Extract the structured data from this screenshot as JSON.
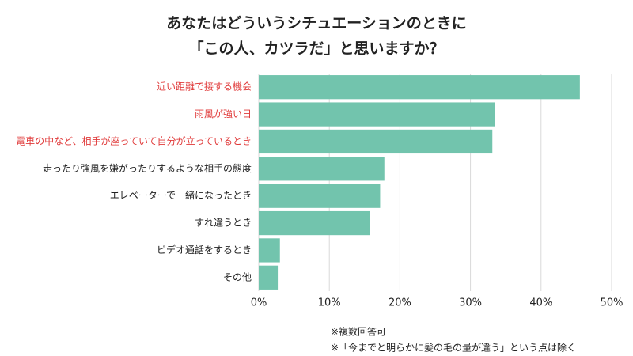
{
  "chart_data": {
    "type": "bar",
    "orientation": "horizontal",
    "title": [
      "あなたはどういうシチュエーションのときに",
      "「この人、カツラだ」と思いますか？"
    ],
    "categories": [
      "近い距離で接する機会",
      "雨風が強い日",
      "電車の中など、相手が座っていて自分が立っているとき",
      "走ったり強風を嫌がったりするような相手の態度",
      "エレベーターで一緒になったとき",
      "すれ違うとき",
      "ビデオ通話をするとき",
      "その他"
    ],
    "category_colors": [
      "#e03a3a",
      "#e03a3a",
      "#e03a3a",
      "#222222",
      "#222222",
      "#222222",
      "#222222",
      "#222222"
    ],
    "values": [
      45.5,
      33.5,
      33.1,
      17.8,
      17.2,
      15.7,
      3.0,
      2.7
    ],
    "color": "#72c4ad",
    "xlim": [
      0,
      50
    ],
    "xticks": [
      {
        "value": 0,
        "label": "0%"
      },
      {
        "value": 10,
        "label": "10%"
      },
      {
        "value": 20,
        "label": "20%"
      },
      {
        "value": 30,
        "label": "30%"
      },
      {
        "value": 40,
        "label": "40%"
      },
      {
        "value": 50,
        "label": "50%"
      }
    ],
    "grid": true,
    "notes": [
      "※複数回答可",
      "※「今までと明らかに髪の毛の量が違う」という点は除く"
    ]
  }
}
